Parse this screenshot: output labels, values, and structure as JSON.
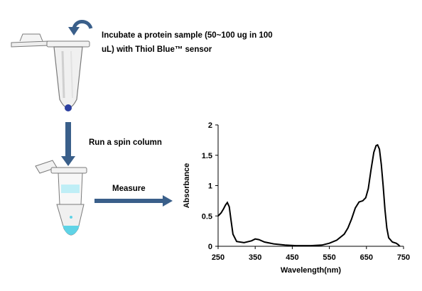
{
  "steps": {
    "incubate_line1": "Incubate a protein sample (50~100 ug in 100",
    "incubate_line2": "uL) with Thiol Blue™ sensor",
    "spin": "Run a spin column",
    "measure": "Measure"
  },
  "colors": {
    "arrow": "#3a5f8a",
    "tube_outline": "#7a7a7a",
    "bead": "#2b3fa0",
    "eluate": "#5fd3e6",
    "curve": "#000000"
  },
  "chart_data": {
    "type": "line",
    "title": "",
    "xlabel": "Wavelength(nm)",
    "ylabel": "Absorbance",
    "xlim": [
      250,
      750
    ],
    "ylim": [
      0,
      2
    ],
    "xticks": [
      "250",
      "350",
      "450",
      "550",
      "650",
      "750"
    ],
    "yticks": [
      "0",
      "0.5",
      "1",
      "1.5",
      "2"
    ],
    "grid": false,
    "series": [
      {
        "x": [
          250,
          258,
          265,
          270,
          275,
          280,
          285,
          290,
          300,
          320,
          340,
          350,
          360,
          375,
          400,
          430,
          460,
          500,
          530,
          550,
          570,
          590,
          600,
          610,
          620,
          630,
          640,
          648,
          655,
          662,
          670,
          676,
          680,
          685,
          690,
          695,
          700,
          705,
          710,
          720,
          730,
          735,
          740
        ],
        "y": [
          0.5,
          0.55,
          0.62,
          0.68,
          0.72,
          0.65,
          0.42,
          0.2,
          0.08,
          0.06,
          0.09,
          0.12,
          0.11,
          0.07,
          0.04,
          0.02,
          0.01,
          0.01,
          0.02,
          0.05,
          0.1,
          0.2,
          0.3,
          0.45,
          0.63,
          0.73,
          0.75,
          0.8,
          0.95,
          1.25,
          1.55,
          1.66,
          1.67,
          1.6,
          1.35,
          1.0,
          0.6,
          0.3,
          0.14,
          0.07,
          0.05,
          0.03,
          0.0
        ]
      }
    ]
  }
}
